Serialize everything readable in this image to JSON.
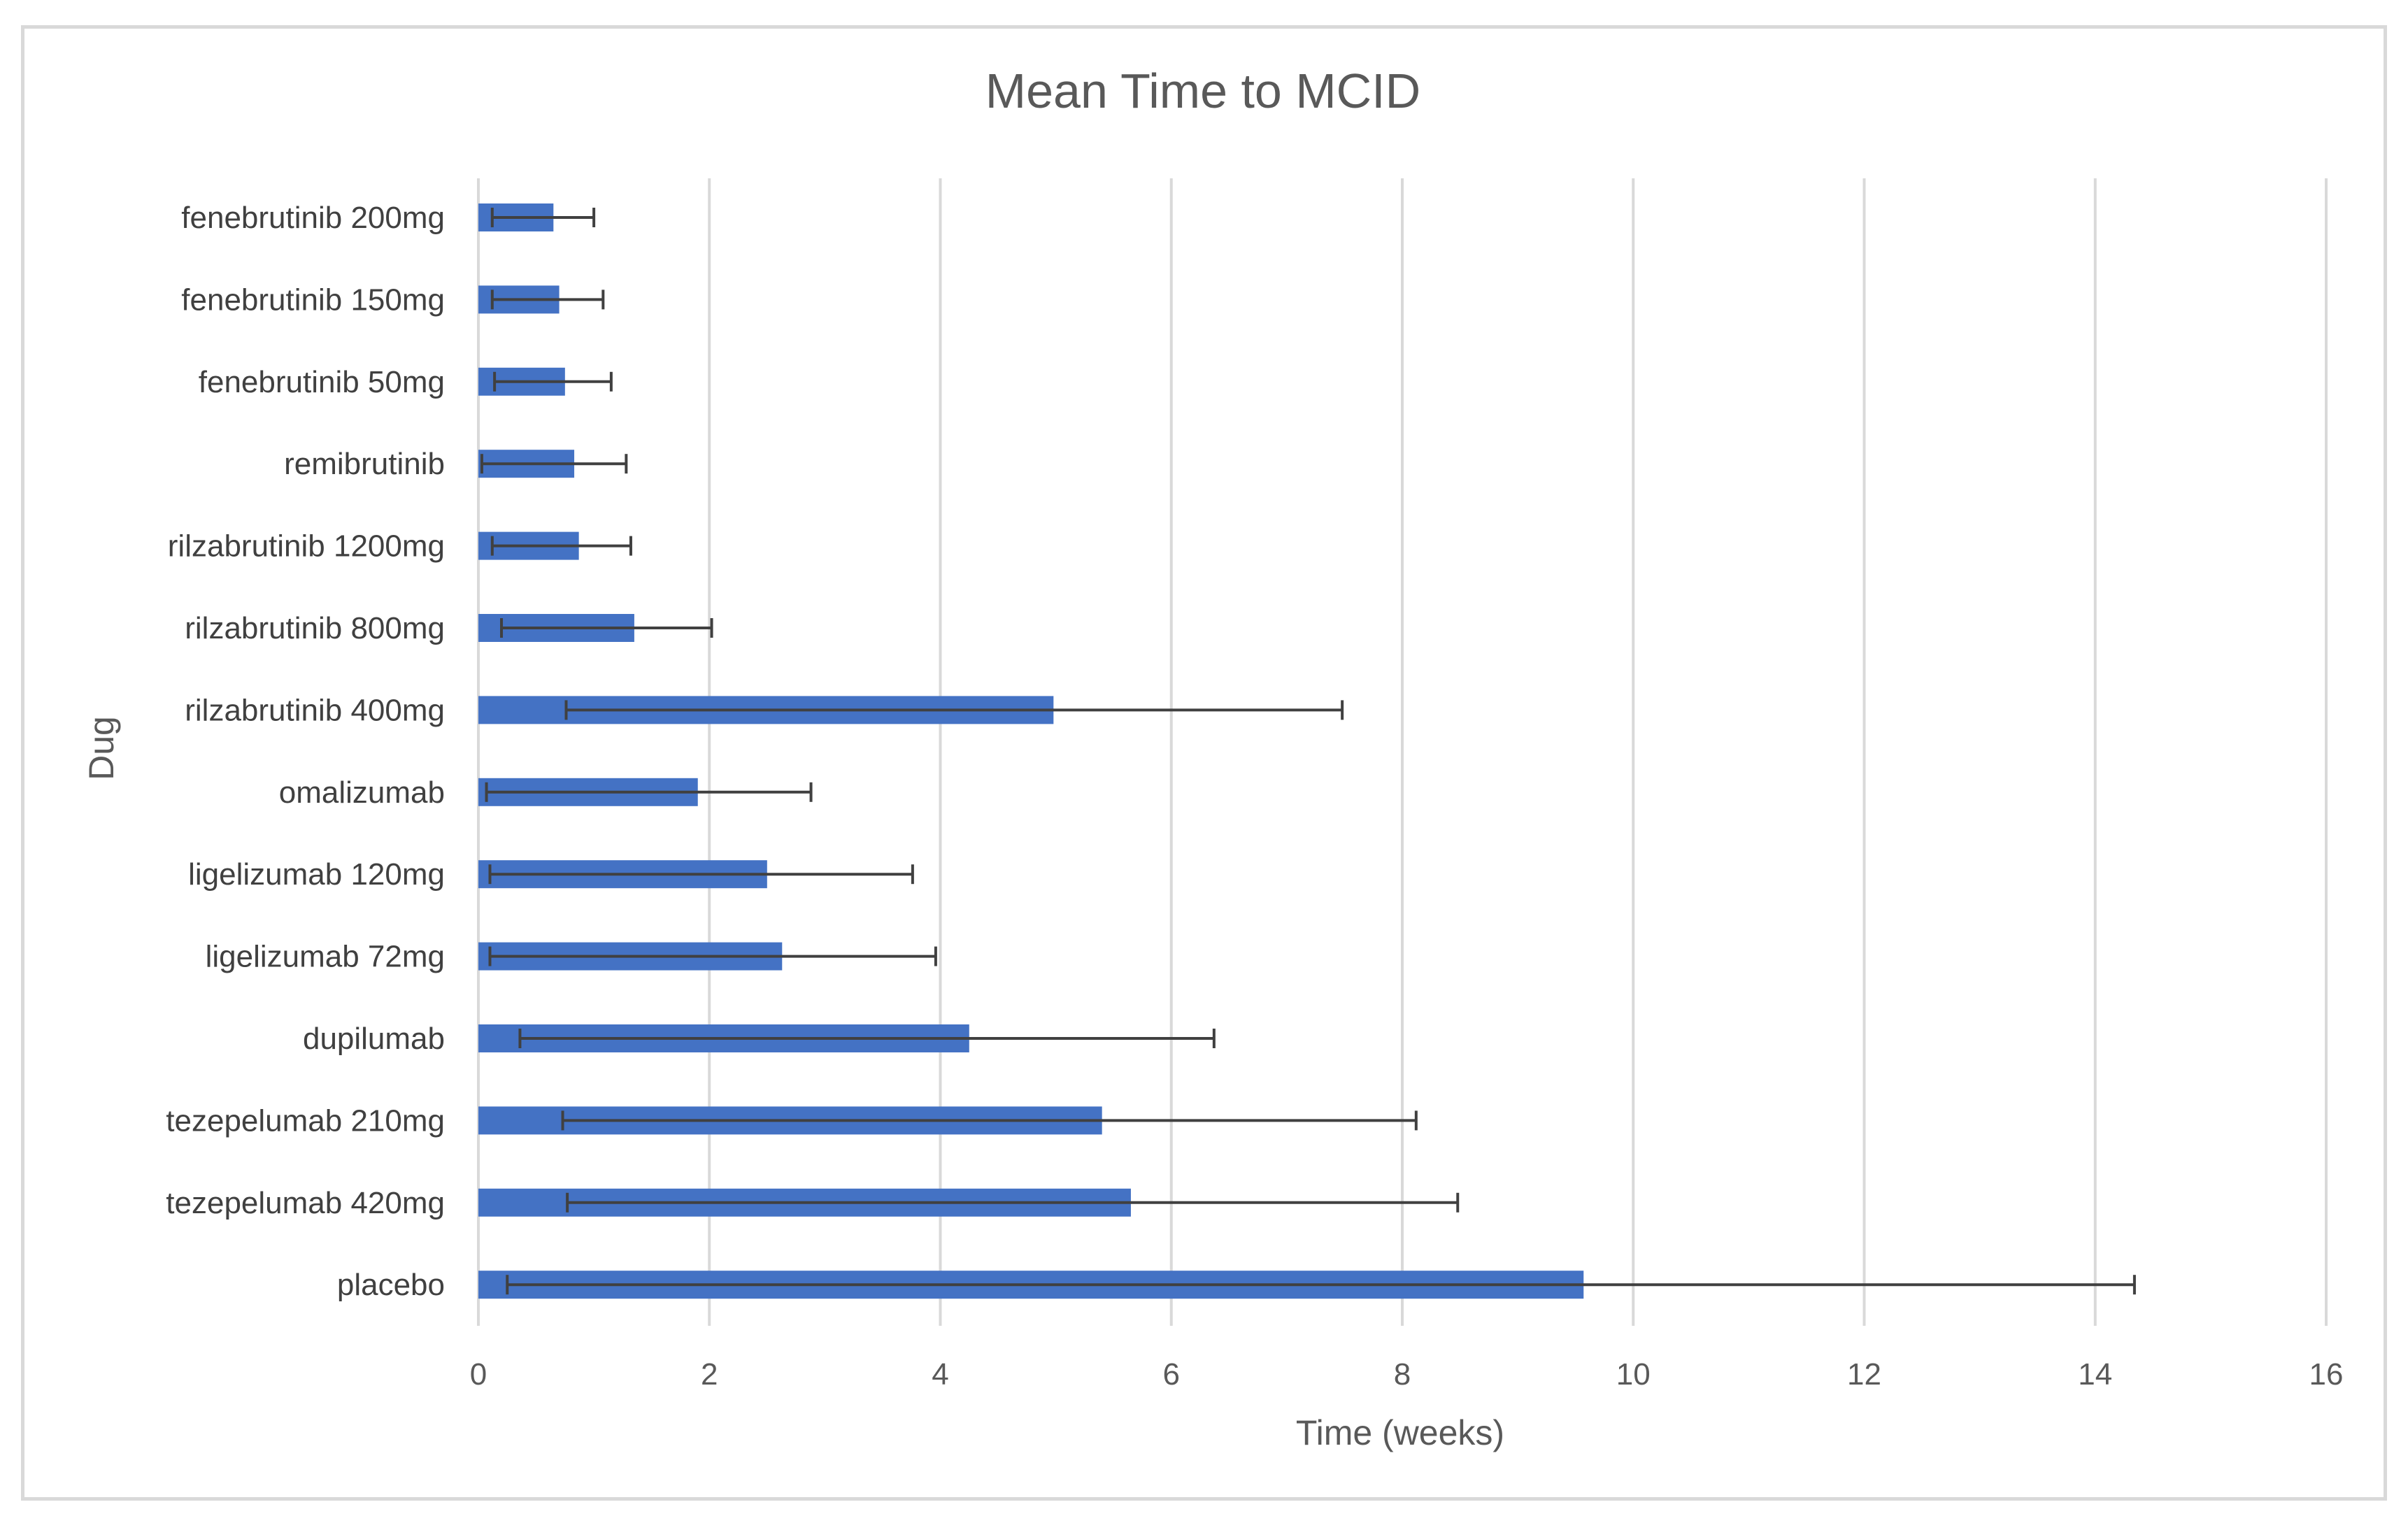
{
  "chart_data": {
    "type": "bar",
    "orientation": "horizontal",
    "title": "Mean Time to MCID",
    "xlabel": "Time (weeks)",
    "ylabel": "Dug",
    "xlim": [
      0,
      16
    ],
    "xticks": [
      0,
      2,
      4,
      6,
      8,
      10,
      12,
      14,
      16
    ],
    "grid": "vertical",
    "legend": "none",
    "bar_color": "#4472c4",
    "error_bar_color": "#404040",
    "categories": [
      "fenebrutinib 200mg",
      "fenebrutinib 150mg",
      "fenebrutinib 50mg",
      "remibrutinib",
      "rilzabrutinib 1200mg",
      "rilzabrutinib 800mg",
      "rilzabrutinib 400mg",
      "omalizumab",
      "ligelizumab 120mg",
      "ligelizumab 72mg",
      "dupilumab",
      "tezepelumab 210mg",
      "tezepelumab 420mg",
      "placebo"
    ],
    "values": [
      0.65,
      0.7,
      0.75,
      0.83,
      0.87,
      1.35,
      4.98,
      1.9,
      2.5,
      2.63,
      4.25,
      5.4,
      5.65,
      9.57
    ],
    "error_low": [
      0.12,
      0.12,
      0.14,
      0.03,
      0.12,
      0.2,
      0.76,
      0.07,
      0.1,
      0.1,
      0.36,
      0.73,
      0.77,
      0.25
    ],
    "error_high": [
      1.0,
      1.08,
      1.15,
      1.28,
      1.32,
      2.02,
      7.48,
      2.88,
      3.76,
      3.96,
      6.37,
      8.12,
      8.48,
      14.34
    ]
  }
}
